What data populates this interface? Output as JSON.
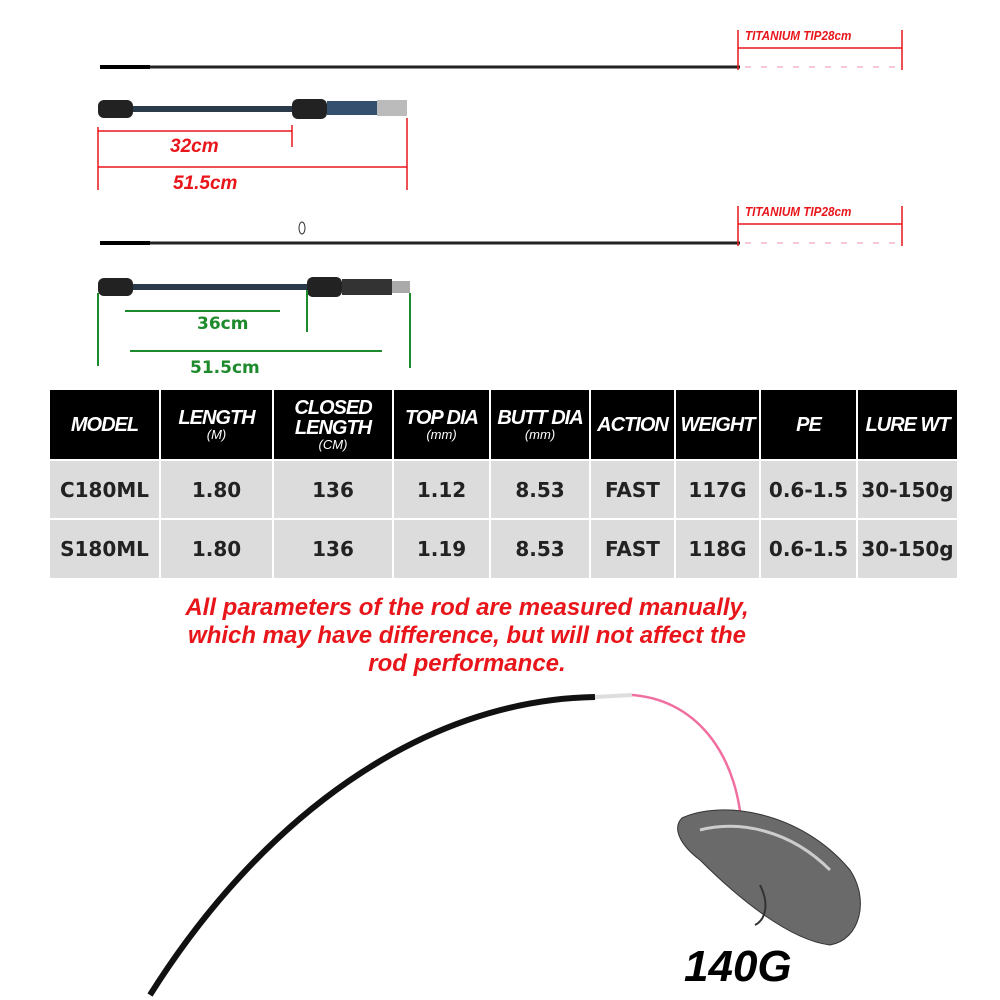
{
  "casting_rod": {
    "tip_label": "TITANIUM TIP28cm",
    "handle_short": "32cm",
    "handle_total": "51.5cm"
  },
  "spinning_rod": {
    "tip_label": "TITANIUM TIP28cm",
    "handle_short": "36cm",
    "handle_total": "51.5cm"
  },
  "colors": {
    "red": "#e8161b",
    "green": "#1d8a2c",
    "tip_pink": "#f06fa0"
  },
  "table": {
    "headers": [
      {
        "label": "MODEL",
        "unit": ""
      },
      {
        "label": "LENGTH",
        "unit": "(M)"
      },
      {
        "label": "CLOSED LENGTH",
        "unit": "(CM)"
      },
      {
        "label": "TOP DIA",
        "unit": "(mm)"
      },
      {
        "label": "BUTT DIA",
        "unit": "(mm)"
      },
      {
        "label": "ACTION",
        "unit": ""
      },
      {
        "label": "WEIGHT",
        "unit": ""
      },
      {
        "label": "PE",
        "unit": ""
      },
      {
        "label": "LURE WT",
        "unit": ""
      }
    ],
    "rows": [
      [
        "C180ML",
        "1.80",
        "136",
        "1.12",
        "8.53",
        "FAST",
        "117G",
        "0.6-1.5",
        "30-150g"
      ],
      [
        "S180ML",
        "1.80",
        "136",
        "1.19",
        "8.53",
        "FAST",
        "118G",
        "0.6-1.5",
        "30-150g"
      ]
    ]
  },
  "note_lines": [
    "All parameters of the rod are measured manually,",
    "which may have difference, but will not affect the",
    "rod performance."
  ],
  "lure_weight": "140G"
}
